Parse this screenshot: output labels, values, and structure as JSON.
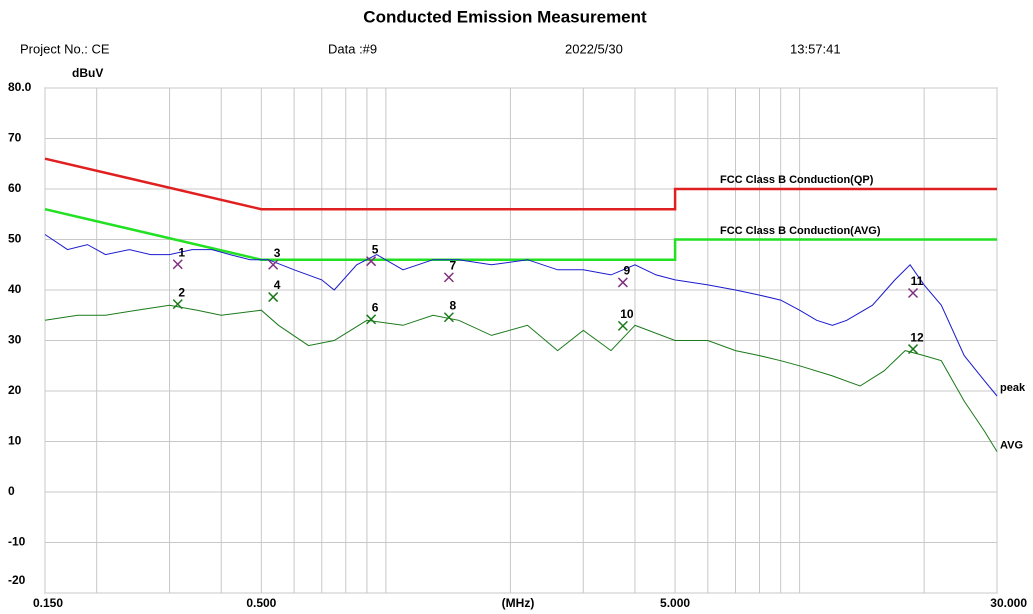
{
  "chart_data": {
    "type": "line",
    "title": "Conducted Emission Measurement",
    "project": "Project No.: CE",
    "data_no": "Data :#9",
    "date": "2022/5/30",
    "time": "13:57:41",
    "y_label": "dBuV",
    "x_label": "(MHz)",
    "x_log": true,
    "grid": true,
    "xlim": [
      0.15,
      30
    ],
    "ylim": [
      -20,
      80
    ],
    "xticks": [
      {
        "value": 0.15,
        "label": "0.150"
      },
      {
        "value": 0.5,
        "label": "0.500"
      },
      {
        "value": 5,
        "label": "5.000"
      },
      {
        "value": 30,
        "label": "30.000"
      }
    ],
    "xgrid": [
      0.2,
      0.3,
      0.4,
      0.6,
      0.7,
      0.8,
      0.9,
      1,
      2,
      3,
      4,
      6,
      7,
      8,
      9,
      10,
      20
    ],
    "yticks": [
      {
        "value": 80,
        "label": "80.0"
      },
      70,
      60,
      50,
      40,
      30,
      20,
      10,
      0,
      -10,
      -20
    ],
    "series": [
      {
        "name": "FCC Class B Conduction(QP)",
        "color": "#e02020",
        "x": [
          0.15,
          0.5,
          5,
          5,
          30
        ],
        "values": [
          66,
          56,
          56,
          60,
          60
        ]
      },
      {
        "name": "FCC Class B Conduction(AVG)",
        "color": "#22e022",
        "x": [
          0.15,
          0.5,
          5,
          5,
          30
        ],
        "values": [
          56,
          46,
          46,
          50,
          50
        ]
      },
      {
        "name": "peak",
        "color": "#1a1ad0",
        "x": [
          0.15,
          0.17,
          0.19,
          0.21,
          0.24,
          0.27,
          0.3,
          0.34,
          0.38,
          0.42,
          0.47,
          0.52,
          0.6,
          0.7,
          0.75,
          0.85,
          0.95,
          1.1,
          1.3,
          1.5,
          1.8,
          2.2,
          2.6,
          3.0,
          3.5,
          4.0,
          4.5,
          5.0,
          6,
          7,
          8,
          9,
          10,
          11,
          12,
          13,
          15,
          17,
          18.5,
          20,
          22,
          25,
          28,
          30
        ],
        "values": [
          51,
          48,
          49,
          47,
          48,
          47,
          47,
          48,
          48,
          47,
          46,
          46,
          44,
          42,
          40,
          45,
          47,
          44,
          46,
          46,
          45,
          46,
          44,
          44,
          43,
          45,
          43,
          42,
          41,
          40,
          39,
          38,
          36,
          34,
          33,
          34,
          37,
          42,
          45,
          41,
          37,
          27,
          22,
          19
        ]
      },
      {
        "name": "AVG",
        "color": "#1a7a1a",
        "x": [
          0.15,
          0.18,
          0.21,
          0.25,
          0.3,
          0.35,
          0.4,
          0.5,
          0.55,
          0.65,
          0.75,
          0.9,
          1.1,
          1.3,
          1.5,
          1.8,
          2.2,
          2.6,
          3.0,
          3.5,
          4.0,
          5.0,
          6,
          7,
          8,
          9,
          10,
          12,
          14,
          16,
          18,
          20,
          22,
          25,
          28,
          30
        ],
        "values": [
          34,
          35,
          35,
          36,
          37,
          36,
          35,
          36,
          33,
          29,
          30,
          34,
          33,
          35,
          34,
          31,
          33,
          28,
          32,
          28,
          33,
          30,
          30,
          28,
          27,
          26,
          25,
          23,
          21,
          24,
          28,
          27,
          26,
          18,
          12,
          8
        ]
      }
    ],
    "markers": [
      {
        "label": "1",
        "x": 0.314,
        "y": 45.1,
        "color": "#803080"
      },
      {
        "label": "2",
        "x": 0.314,
        "y": 37.2,
        "color": "#1a7a1a"
      },
      {
        "label": "3",
        "x": 0.534,
        "y": 45,
        "color": "#803080"
      },
      {
        "label": "4",
        "x": 0.534,
        "y": 38.6,
        "color": "#1a7a1a"
      },
      {
        "label": "5",
        "x": 0.921,
        "y": 45.7,
        "color": "#803080"
      },
      {
        "label": "6",
        "x": 0.921,
        "y": 34.2,
        "color": "#1a7a1a"
      },
      {
        "label": "7",
        "x": 1.42,
        "y": 42.5,
        "color": "#803080"
      },
      {
        "label": "8",
        "x": 1.42,
        "y": 34.6,
        "color": "#1a7a1a"
      },
      {
        "label": "9",
        "x": 3.74,
        "y": 41.5,
        "color": "#803080"
      },
      {
        "label": "10",
        "x": 3.74,
        "y": 32.9,
        "color": "#1a7a1a"
      },
      {
        "label": "11",
        "x": 18.8,
        "y": 39.4,
        "color": "#803080"
      },
      {
        "label": "12",
        "x": 18.8,
        "y": 28.3,
        "color": "#1a7a1a"
      }
    ]
  }
}
